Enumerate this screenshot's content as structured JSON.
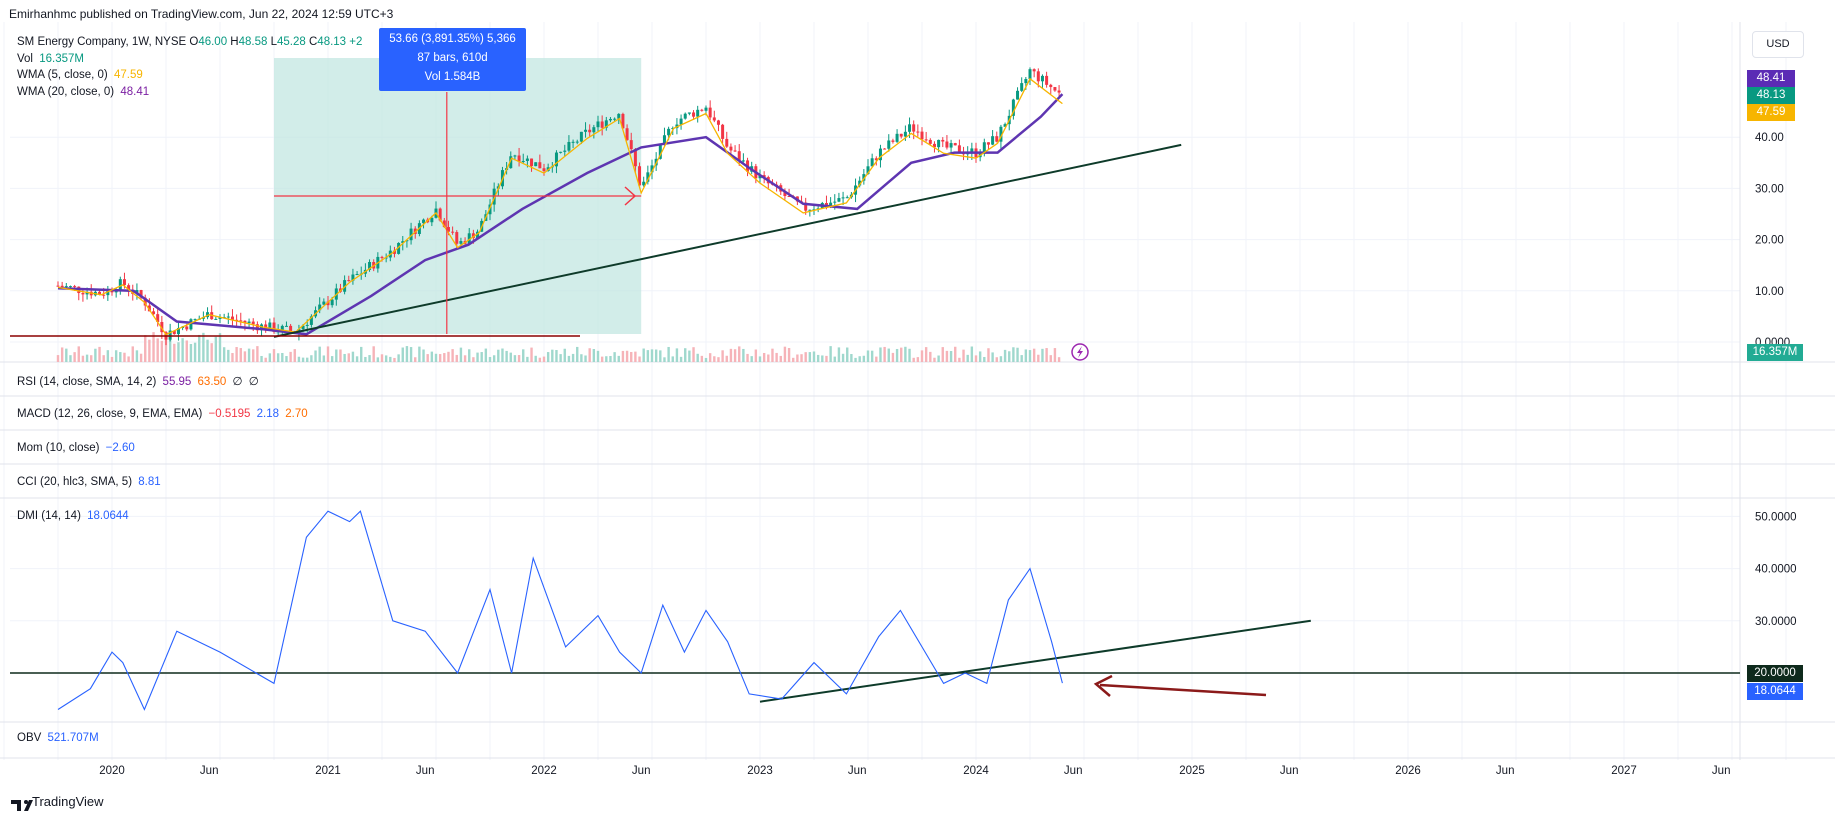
{
  "header": {
    "published": "Emirhanhmc published on TradingView.com, Jun 22, 2024 12:59 UTC+3"
  },
  "symbol": {
    "name": "SM Energy Company, 1W, NYSE",
    "open_label": "O",
    "open": "46.00",
    "high_label": "H",
    "high": "48.58",
    "low_label": "L",
    "low": "45.28",
    "close_label": "C",
    "close": "48.13",
    "change": "+2"
  },
  "indicators": {
    "vol_label": "Vol",
    "vol_value": "16.357M",
    "wma5_label": "WMA (5, close, 0)",
    "wma5_value": "47.59",
    "wma20_label": "WMA (20, close, 0)",
    "wma20_value": "48.41",
    "rsi_label": "RSI (14, close, SMA, 14, 2)",
    "rsi_v1": "55.95",
    "rsi_v2": "63.50",
    "rsi_v3": "∅",
    "rsi_v4": "∅",
    "macd_label": "MACD (12, 26, close, 9, EMA, EMA)",
    "macd_v1": "−0.5195",
    "macd_v2": "2.18",
    "macd_v3": "2.70",
    "mom_label": "Mom (10, close)",
    "mom_value": "−2.60",
    "cci_label": "CCI (20, hlc3, SMA, 5)",
    "cci_value": "8.81",
    "dmi_label": "DMI (14, 14)",
    "dmi_value": "18.0644",
    "obv_label": "OBV",
    "obv_value": "521.707M"
  },
  "currency": "USD",
  "measure_tooltip": {
    "line1": "53.66 (3,891.35%) 5,366",
    "line2": "87 bars, 610d",
    "line3": "Vol 1.584B"
  },
  "price_badges": [
    {
      "value": "48.41",
      "color": "#5b2bb5"
    },
    {
      "value": "48.13",
      "color": "#089981"
    },
    {
      "value": "47.59",
      "color": "#f7b500"
    },
    {
      "value": "16.357M",
      "color": "#22ab94"
    }
  ],
  "dmi_badges": [
    {
      "value": "20.0000",
      "color": "#0e2a1c"
    },
    {
      "value": "18.0644",
      "color": "#2962ff"
    }
  ],
  "footer": {
    "brand": "TradingView"
  },
  "chart_data": [
    {
      "type": "candlestick",
      "title": "SM Energy Company, 1W, NYSE",
      "y_ticks": [
        "40.00",
        "30.00",
        "20.00",
        "10.00",
        "0.0000"
      ],
      "ylim": [
        0,
        48.5
      ],
      "x_ticks": [
        "2020",
        "Jun",
        "2021",
        "Jun",
        "2022",
        "Jun",
        "2023",
        "Jun",
        "2024",
        "Jun",
        "2025",
        "Jun",
        "2026",
        "Jun",
        "2027",
        "Jun"
      ],
      "price_path": [
        [
          2019.75,
          11
        ],
        [
          2019.95,
          9.5
        ],
        [
          2020.05,
          11.5
        ],
        [
          2020.15,
          8
        ],
        [
          2020.25,
          1.5
        ],
        [
          2020.45,
          5.5
        ],
        [
          2020.7,
          3
        ],
        [
          2020.85,
          2
        ],
        [
          2020.95,
          6
        ],
        [
          2021.1,
          12
        ],
        [
          2021.3,
          18
        ],
        [
          2021.5,
          26
        ],
        [
          2021.6,
          19
        ],
        [
          2021.7,
          22
        ],
        [
          2021.85,
          37
        ],
        [
          2022.0,
          34
        ],
        [
          2022.2,
          41
        ],
        [
          2022.35,
          45
        ],
        [
          2022.45,
          30
        ],
        [
          2022.6,
          43
        ],
        [
          2022.75,
          46
        ],
        [
          2022.85,
          38
        ],
        [
          2023.0,
          32
        ],
        [
          2023.2,
          26
        ],
        [
          2023.4,
          28
        ],
        [
          2023.55,
          37
        ],
        [
          2023.7,
          42
        ],
        [
          2023.85,
          38
        ],
        [
          2024.0,
          37
        ],
        [
          2024.1,
          40
        ],
        [
          2024.25,
          53
        ],
        [
          2024.4,
          48
        ]
      ],
      "wma20_path": [
        [
          2019.75,
          10.5
        ],
        [
          2020.1,
          10
        ],
        [
          2020.3,
          4
        ],
        [
          2020.7,
          2.5
        ],
        [
          2020.9,
          1.5
        ],
        [
          2021.2,
          9
        ],
        [
          2021.45,
          16
        ],
        [
          2021.65,
          19
        ],
        [
          2021.9,
          26
        ],
        [
          2022.2,
          33
        ],
        [
          2022.45,
          38
        ],
        [
          2022.75,
          40
        ],
        [
          2022.95,
          34
        ],
        [
          2023.2,
          27
        ],
        [
          2023.45,
          26
        ],
        [
          2023.7,
          35
        ],
        [
          2023.9,
          37
        ],
        [
          2024.1,
          37
        ],
        [
          2024.3,
          44
        ],
        [
          2024.4,
          48.41
        ]
      ],
      "volume_note": "Vol 16.357M"
    },
    {
      "type": "line",
      "title": "DMI (14, 14)",
      "y_ticks": [
        "50.0000",
        "40.0000",
        "30.0000"
      ],
      "ylim": [
        13,
        51
      ],
      "reference_level": 20,
      "series": [
        {
          "name": "DMI (14, 14)",
          "color": "#2962ff",
          "values": [
            [
              2019.75,
              13
            ],
            [
              2019.9,
              17
            ],
            [
              2020.0,
              24
            ],
            [
              2020.05,
              22
            ],
            [
              2020.15,
              13
            ],
            [
              2020.3,
              28
            ],
            [
              2020.5,
              24
            ],
            [
              2020.75,
              18
            ],
            [
              2020.9,
              46
            ],
            [
              2021.0,
              51
            ],
            [
              2021.1,
              49
            ],
            [
              2021.15,
              51
            ],
            [
              2021.3,
              30
            ],
            [
              2021.45,
              28
            ],
            [
              2021.6,
              20
            ],
            [
              2021.75,
              36
            ],
            [
              2021.85,
              20
            ],
            [
              2021.95,
              42
            ],
            [
              2022.1,
              25
            ],
            [
              2022.25,
              31
            ],
            [
              2022.35,
              24
            ],
            [
              2022.45,
              20
            ],
            [
              2022.55,
              33
            ],
            [
              2022.65,
              24
            ],
            [
              2022.75,
              32
            ],
            [
              2022.85,
              26
            ],
            [
              2022.95,
              16
            ],
            [
              2023.1,
              15
            ],
            [
              2023.25,
              22
            ],
            [
              2023.4,
              16
            ],
            [
              2023.55,
              27
            ],
            [
              2023.65,
              32
            ],
            [
              2023.75,
              25
            ],
            [
              2023.85,
              18
            ],
            [
              2023.95,
              20
            ],
            [
              2024.05,
              18
            ],
            [
              2024.15,
              34
            ],
            [
              2024.25,
              40
            ],
            [
              2024.35,
              26
            ],
            [
              2024.4,
              18.06
            ]
          ]
        }
      ]
    }
  ]
}
